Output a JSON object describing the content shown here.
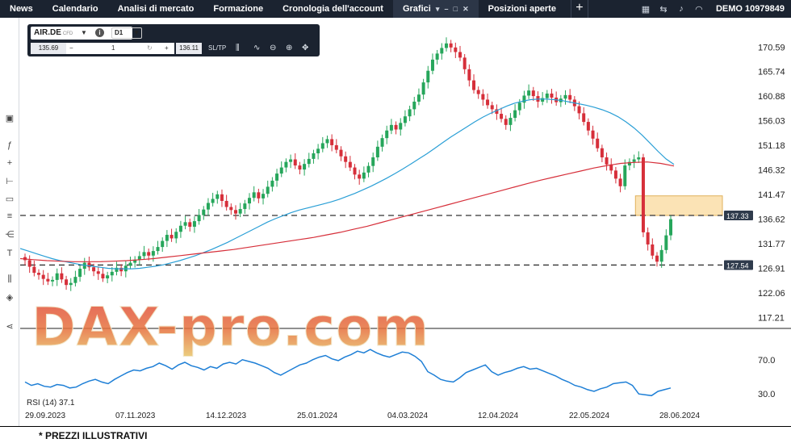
{
  "topbar": {
    "nav": [
      "News",
      "Calendario",
      "Analisi di mercato",
      "Formazione",
      "Cronologia dell'account"
    ],
    "active_tab": "Grafici",
    "tab_after": "Posizioni aperte",
    "account_label": "DEMO",
    "account_number": "10979849"
  },
  "widget": {
    "symbol": "AIR.DE",
    "instrument_type": "CFD",
    "timeframe": "D1",
    "bid": "135.69",
    "quantity": "1",
    "ask": "136.11",
    "sltp_label": "SL/TP",
    "minus": "−",
    "plus": "+"
  },
  "price_axis": [
    "170.59",
    "165.74",
    "160.88",
    "156.03",
    "151.18",
    "146.32",
    "141.47",
    "136.62",
    "131.77",
    "126.91",
    "122.06",
    "117.21"
  ],
  "time_axis": [
    "29.09.2023",
    "07.11.2023",
    "14.12.2023",
    "25.01.2024",
    "04.03.2024",
    "12.04.2024",
    "22.05.2024",
    "28.06.2024"
  ],
  "levels": [
    "137.33",
    "127.54"
  ],
  "rsi": {
    "label": "RSI (14) 37.1",
    "ticks": [
      "70.0",
      "30.0"
    ]
  },
  "watermark": "DAX-pro.com",
  "footer": "* PREZZI ILLUSTRATIVI",
  "colors": {
    "up": "#26a65b",
    "down": "#d62f3a",
    "ma_fast": "#2a9fd6",
    "ma_slow": "#d62f3a",
    "rsi": "#1e7fd6",
    "zone": "#fbe3b5",
    "topbar": "#1b2330"
  },
  "chart_data": {
    "type": "candlestick",
    "ylim": [
      115.5,
      173.5
    ],
    "series": [
      {
        "name": "Close",
        "values": [
          128.5,
          127.2,
          126.0,
          125.6,
          124.8,
          124.3,
          124.6,
          125.9,
          124.7,
          123.6,
          124.0,
          125.2,
          126.8,
          128.0,
          127.1,
          126.3,
          125.8,
          124.9,
          125.5,
          126.2,
          127.0,
          126.3,
          127.4,
          128.0,
          128.6,
          129.3,
          130.1,
          129.4,
          130.3,
          131.1,
          132.3,
          133.5,
          132.8,
          134.1,
          135.3,
          136.0,
          135.1,
          136.2,
          137.4,
          138.5,
          139.8,
          140.6,
          141.5,
          140.2,
          139.0,
          138.4,
          137.7,
          138.6,
          139.7,
          140.8,
          141.9,
          140.7,
          141.6,
          143.0,
          144.2,
          145.6,
          146.8,
          147.9,
          148.4,
          147.2,
          146.4,
          147.5,
          148.5,
          149.6,
          150.5,
          151.6,
          152.4,
          151.2,
          150.3,
          149.0,
          147.9,
          146.8,
          145.4,
          144.6,
          145.8,
          147.1,
          148.8,
          150.9,
          152.6,
          154.1,
          155.2,
          154.3,
          155.6,
          156.9,
          158.3,
          159.8,
          161.2,
          163.6,
          165.9,
          168.1,
          169.3,
          170.4,
          171.3,
          170.5,
          169.6,
          168.5,
          166.2,
          164.0,
          162.1,
          161.3,
          160.2,
          159.1,
          158.3,
          157.4,
          156.4,
          155.2,
          156.6,
          158.1,
          159.6,
          161.0,
          162.0,
          160.9,
          159.8,
          160.5,
          161.4,
          160.6,
          159.7,
          160.4,
          161.1,
          160.2,
          158.9,
          157.5,
          155.8,
          154.1,
          152.5,
          150.6,
          148.8,
          147.4,
          146.2,
          144.6,
          143.1,
          147.2,
          147.9,
          148.4,
          148.8,
          134.0,
          131.6,
          129.4,
          128.2,
          130.5,
          133.4,
          136.6
        ]
      },
      {
        "name": "MA fast",
        "values": [
          130.8,
          130.3,
          129.8,
          129.3,
          128.8,
          128.4,
          128.1,
          127.8,
          127.5,
          127.3,
          127.1,
          126.9,
          126.8,
          126.8,
          126.8,
          126.9,
          127.1,
          127.3,
          127.6,
          128.0,
          128.4,
          128.9,
          129.4,
          130.0,
          130.6,
          131.3,
          132.0,
          132.8,
          133.6,
          134.4,
          135.2,
          136.0,
          136.7,
          137.3,
          137.9,
          138.4,
          138.8,
          139.2,
          139.6,
          140.0,
          140.5,
          141.1,
          141.7,
          142.4,
          143.1,
          143.9,
          144.7,
          145.6,
          146.5,
          147.5,
          148.5,
          149.5,
          150.6,
          151.7,
          152.8,
          153.8,
          154.8,
          155.8,
          156.7,
          157.5,
          158.2,
          158.9,
          159.5,
          159.9,
          160.2,
          160.3,
          160.3,
          160.2,
          160.0,
          159.7,
          159.4,
          159.1,
          158.7,
          158.2,
          157.6,
          156.8,
          155.8,
          154.6,
          153.2,
          151.6,
          150.0,
          148.5,
          147.4
        ]
      },
      {
        "name": "MA slow",
        "values": [
          128.8,
          128.6,
          128.4,
          128.3,
          128.2,
          128.2,
          128.2,
          128.3,
          128.4,
          128.6,
          128.8,
          129.1,
          129.4,
          129.7,
          130.0,
          130.3,
          130.6,
          131.0,
          131.4,
          131.8,
          132.2,
          132.6,
          133.0,
          133.5,
          134.0,
          134.6,
          135.2,
          135.9,
          136.6,
          137.3,
          138.0,
          138.7,
          139.4,
          140.1,
          140.8,
          141.5,
          142.2,
          142.9,
          143.6,
          144.3,
          144.9,
          145.5,
          146.1,
          146.7,
          147.2,
          147.6,
          147.8,
          147.9,
          147.6,
          147.1
        ]
      },
      {
        "name": "RSI",
        "values": [
          44,
          40,
          42,
          39,
          38,
          41,
          40,
          37,
          38,
          42,
          45,
          47,
          44,
          42,
          47,
          51,
          55,
          58,
          57,
          60,
          62,
          66,
          63,
          59,
          64,
          67,
          63,
          61,
          58,
          62,
          60,
          65,
          67,
          65,
          70,
          68,
          66,
          63,
          60,
          55,
          52,
          56,
          60,
          64,
          66,
          70,
          73,
          75,
          71,
          69,
          73,
          76,
          80,
          78,
          82,
          78,
          75,
          73,
          76,
          79,
          78,
          74,
          68,
          56,
          52,
          47,
          45,
          44,
          49,
          55,
          58,
          61,
          64,
          56,
          52,
          55,
          57,
          60,
          62,
          59,
          60,
          57,
          54,
          51,
          47,
          44,
          40,
          38,
          35,
          33,
          36,
          38,
          42,
          43,
          44,
          40,
          30,
          29,
          28,
          33,
          35,
          37
        ]
      }
    ]
  }
}
